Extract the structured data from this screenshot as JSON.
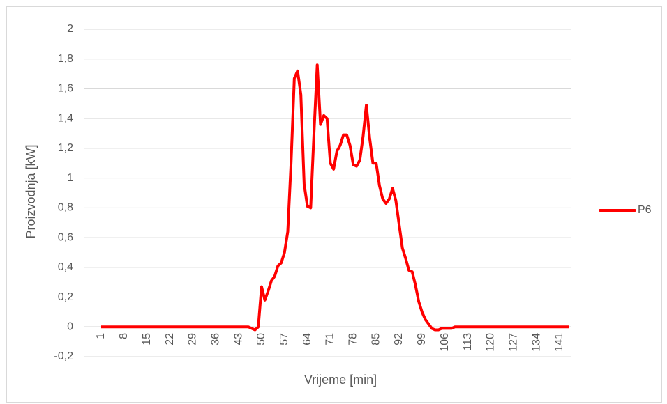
{
  "chart_data": {
    "type": "line",
    "y_label": "Proizvodnja [kW]",
    "x_label": "Vrijeme [min]",
    "categories": [
      "1",
      null,
      null,
      null,
      null,
      null,
      null,
      "8",
      null,
      null,
      null,
      null,
      null,
      null,
      "15",
      null,
      null,
      null,
      null,
      null,
      null,
      "22",
      null,
      null,
      null,
      null,
      null,
      null,
      "29",
      null,
      null,
      null,
      null,
      null,
      null,
      "36",
      null,
      null,
      null,
      null,
      null,
      null,
      "43",
      null,
      null,
      null,
      null,
      null,
      null,
      "50",
      null,
      null,
      null,
      null,
      null,
      null,
      "57",
      null,
      null,
      null,
      null,
      null,
      null,
      "64",
      null,
      null,
      null,
      null,
      null,
      null,
      "71",
      null,
      null,
      null,
      null,
      null,
      null,
      "78",
      null,
      null,
      null,
      null,
      null,
      null,
      "85",
      null,
      null,
      null,
      null,
      null,
      null,
      "92",
      null,
      null,
      null,
      null,
      null,
      null,
      "99",
      null,
      null,
      null,
      null,
      null,
      null,
      "106",
      null,
      null,
      null,
      null,
      null,
      null,
      "113",
      null,
      null,
      null,
      null,
      null,
      null,
      "120",
      null,
      null,
      null,
      null,
      null,
      null,
      "127",
      null,
      null,
      null,
      null,
      null,
      null,
      "134",
      null,
      null,
      null,
      null,
      null,
      null,
      "141",
      null,
      null,
      null
    ],
    "series": [
      {
        "name": "P6",
        "color": "#ff0000",
        "values": [
          0,
          0,
          0,
          0,
          0,
          0,
          0,
          0,
          0,
          0,
          0,
          0,
          0,
          0,
          0,
          0,
          0,
          0,
          0,
          0,
          0,
          0,
          0,
          0,
          0,
          0,
          0,
          0,
          0,
          0,
          0,
          0,
          0,
          0,
          0,
          0,
          0,
          0,
          0,
          0,
          0,
          0,
          0,
          0,
          0,
          0,
          -0.01,
          -0.02,
          0,
          0.27,
          0.18,
          0.24,
          0.31,
          0.34,
          0.41,
          0.43,
          0.5,
          0.64,
          1.1,
          1.67,
          1.72,
          1.56,
          0.96,
          0.81,
          0.8,
          1.3,
          1.76,
          1.36,
          1.42,
          1.4,
          1.1,
          1.06,
          1.18,
          1.22,
          1.29,
          1.29,
          1.22,
          1.09,
          1.08,
          1.12,
          1.28,
          1.49,
          1.27,
          1.1,
          1.1,
          0.95,
          0.86,
          0.83,
          0.86,
          0.93,
          0.85,
          0.69,
          0.53,
          0.46,
          0.38,
          0.37,
          0.28,
          0.17,
          0.1,
          0.05,
          0.02,
          -0.01,
          -0.02,
          -0.02,
          -0.01,
          -0.01,
          -0.01,
          -0.01,
          0,
          0,
          0,
          0,
          0,
          0,
          0,
          0,
          0,
          0,
          0,
          0,
          0,
          0,
          0,
          0,
          0,
          0,
          0,
          0,
          0,
          0,
          0,
          0,
          0,
          0,
          0,
          0,
          0,
          0,
          0,
          0,
          0,
          0,
          0,
          0
        ]
      }
    ],
    "ylim": [
      -0.2,
      2
    ],
    "yticks": [
      {
        "value": -0.2,
        "label": "-0,2"
      },
      0,
      {
        "value": 0.2,
        "label": "0,2"
      },
      {
        "value": 0.4,
        "label": "0,4"
      },
      {
        "value": 0.6,
        "label": "0,6"
      },
      {
        "value": 0.8,
        "label": "0,8"
      },
      1,
      {
        "value": 1.2,
        "label": "1,2"
      },
      {
        "value": 1.4,
        "label": "1,4"
      },
      {
        "value": 1.6,
        "label": "1,6"
      },
      {
        "value": 1.8,
        "label": "1,8"
      },
      2
    ],
    "grid": true,
    "legend": "right"
  }
}
